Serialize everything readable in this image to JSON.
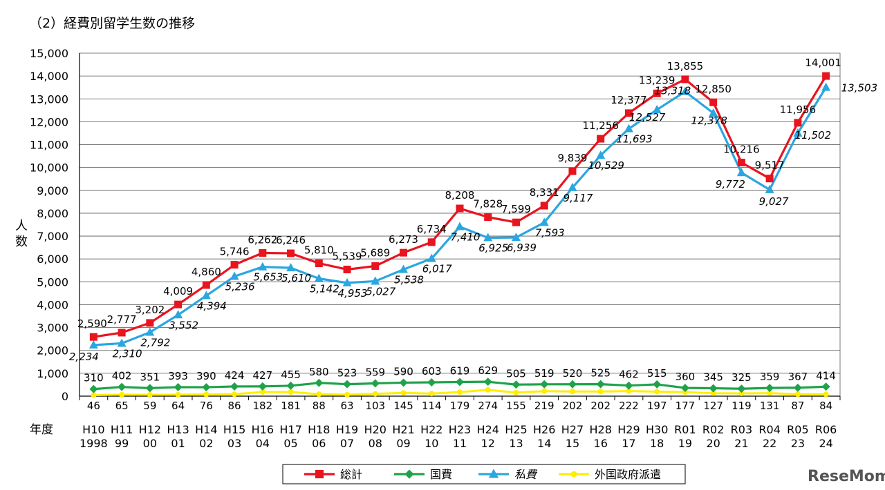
{
  "page": {
    "section_title": "（2）経費別留学生数の推移",
    "watermark": "ReseMom"
  },
  "chart_data": {
    "type": "line",
    "title": "（2）経費別留学生数の推移",
    "ylabel": "人数",
    "xlabel": "年度",
    "ylim": [
      0,
      15000
    ],
    "ytick_step": 1000,
    "grid": true,
    "legend_position": "bottom-center",
    "categories": [
      {
        "era": "H10",
        "year": "1998"
      },
      {
        "era": "H11",
        "year": "99"
      },
      {
        "era": "H12",
        "year": "00"
      },
      {
        "era": "H13",
        "year": "01"
      },
      {
        "era": "H14",
        "year": "02"
      },
      {
        "era": "H15",
        "year": "03"
      },
      {
        "era": "H16",
        "year": "04"
      },
      {
        "era": "H17",
        "year": "05"
      },
      {
        "era": "H18",
        "year": "06"
      },
      {
        "era": "H19",
        "year": "07"
      },
      {
        "era": "H20",
        "year": "08"
      },
      {
        "era": "H21",
        "year": "09"
      },
      {
        "era": "H22",
        "year": "10"
      },
      {
        "era": "H23",
        "year": "11"
      },
      {
        "era": "H24",
        "year": "12"
      },
      {
        "era": "H25",
        "year": "13"
      },
      {
        "era": "H26",
        "year": "14"
      },
      {
        "era": "H27",
        "year": "15"
      },
      {
        "era": "H28",
        "year": "16"
      },
      {
        "era": "H29",
        "year": "17"
      },
      {
        "era": "H30",
        "year": "18"
      },
      {
        "era": "R01",
        "year": "19"
      },
      {
        "era": "R02",
        "year": "20"
      },
      {
        "era": "R03",
        "year": "21"
      },
      {
        "era": "R04",
        "year": "22"
      },
      {
        "era": "R05",
        "year": "23"
      },
      {
        "era": "R06",
        "year": "24"
      }
    ],
    "series": [
      {
        "key": "total",
        "name": "総計",
        "color": "#e8141e",
        "marker": "square",
        "italic_labels": false,
        "values": [
          2590,
          2777,
          3202,
          4009,
          4860,
          5746,
          6262,
          6246,
          5810,
          5539,
          5689,
          6273,
          6734,
          8208,
          7828,
          7599,
          8331,
          9839,
          11256,
          12377,
          13239,
          13855,
          12850,
          10216,
          9517,
          11956,
          14001
        ],
        "labels": [
          "2,590",
          "2,777",
          "3,202",
          "4,009",
          "4,860",
          "5,746",
          "6,262",
          "6,246",
          "5,810",
          "5,539",
          "5,689",
          "6,273",
          "6,734",
          "8,208",
          "7,828",
          "7,599",
          "8,331",
          "9,839",
          "11,256",
          "12,377",
          "13,239",
          "13,855",
          "12,850",
          "10,216",
          "9,517",
          "11,956",
          "14,001"
        ]
      },
      {
        "key": "government",
        "name": "国費",
        "color": "#1fa24a",
        "marker": "diamond",
        "italic_labels": false,
        "values": [
          310,
          402,
          351,
          393,
          390,
          424,
          427,
          455,
          580,
          523,
          559,
          590,
          603,
          619,
          629,
          505,
          519,
          520,
          525,
          462,
          515,
          360,
          345,
          325,
          359,
          367,
          414
        ],
        "labels": [
          "310",
          "402",
          "351",
          "393",
          "390",
          "424",
          "427",
          "455",
          "580",
          "523",
          "559",
          "590",
          "603",
          "619",
          "629",
          "505",
          "519",
          "520",
          "525",
          "462",
          "515",
          "360",
          "345",
          "325",
          "359",
          "367",
          "414"
        ]
      },
      {
        "key": "private",
        "name": "私費",
        "color": "#2aa6e0",
        "marker": "triangle",
        "italic_labels": true,
        "values": [
          2234,
          2310,
          2792,
          3552,
          4394,
          5236,
          5653,
          5610,
          5142,
          4953,
          5027,
          5538,
          6017,
          7410,
          6925,
          6939,
          7593,
          9117,
          10529,
          11693,
          12527,
          13318,
          12378,
          9772,
          9027,
          11502,
          13503
        ],
        "labels": [
          "2,234",
          "2,310",
          "2,792",
          "3,552",
          "4,394",
          "5,236",
          "5,653",
          "5,610",
          "5,142",
          "4,953",
          "5,027",
          "5,538",
          "6,017",
          "7,410",
          "6,925",
          "6,939",
          "7,593",
          "9,117",
          "10,529",
          "11,693",
          "12,527",
          "13,318",
          "12,378",
          "9,772",
          "9,027",
          "11,502",
          "13,503"
        ]
      },
      {
        "key": "foreign",
        "name": "外国政府派遣",
        "color": "#ffee00",
        "marker": "circle",
        "italic_labels": false,
        "values": [
          46,
          65,
          59,
          64,
          76,
          86,
          182,
          181,
          88,
          63,
          103,
          145,
          114,
          179,
          274,
          155,
          219,
          202,
          202,
          222,
          197,
          177,
          127,
          119,
          131,
          87,
          84
        ],
        "labels": [
          "46",
          "65",
          "59",
          "64",
          "76",
          "86",
          "182",
          "181",
          "88",
          "63",
          "103",
          "145",
          "114",
          "179",
          "274",
          "155",
          "219",
          "202",
          "202",
          "222",
          "197",
          "177",
          "127",
          "119",
          "131",
          "87",
          "84"
        ]
      }
    ]
  }
}
